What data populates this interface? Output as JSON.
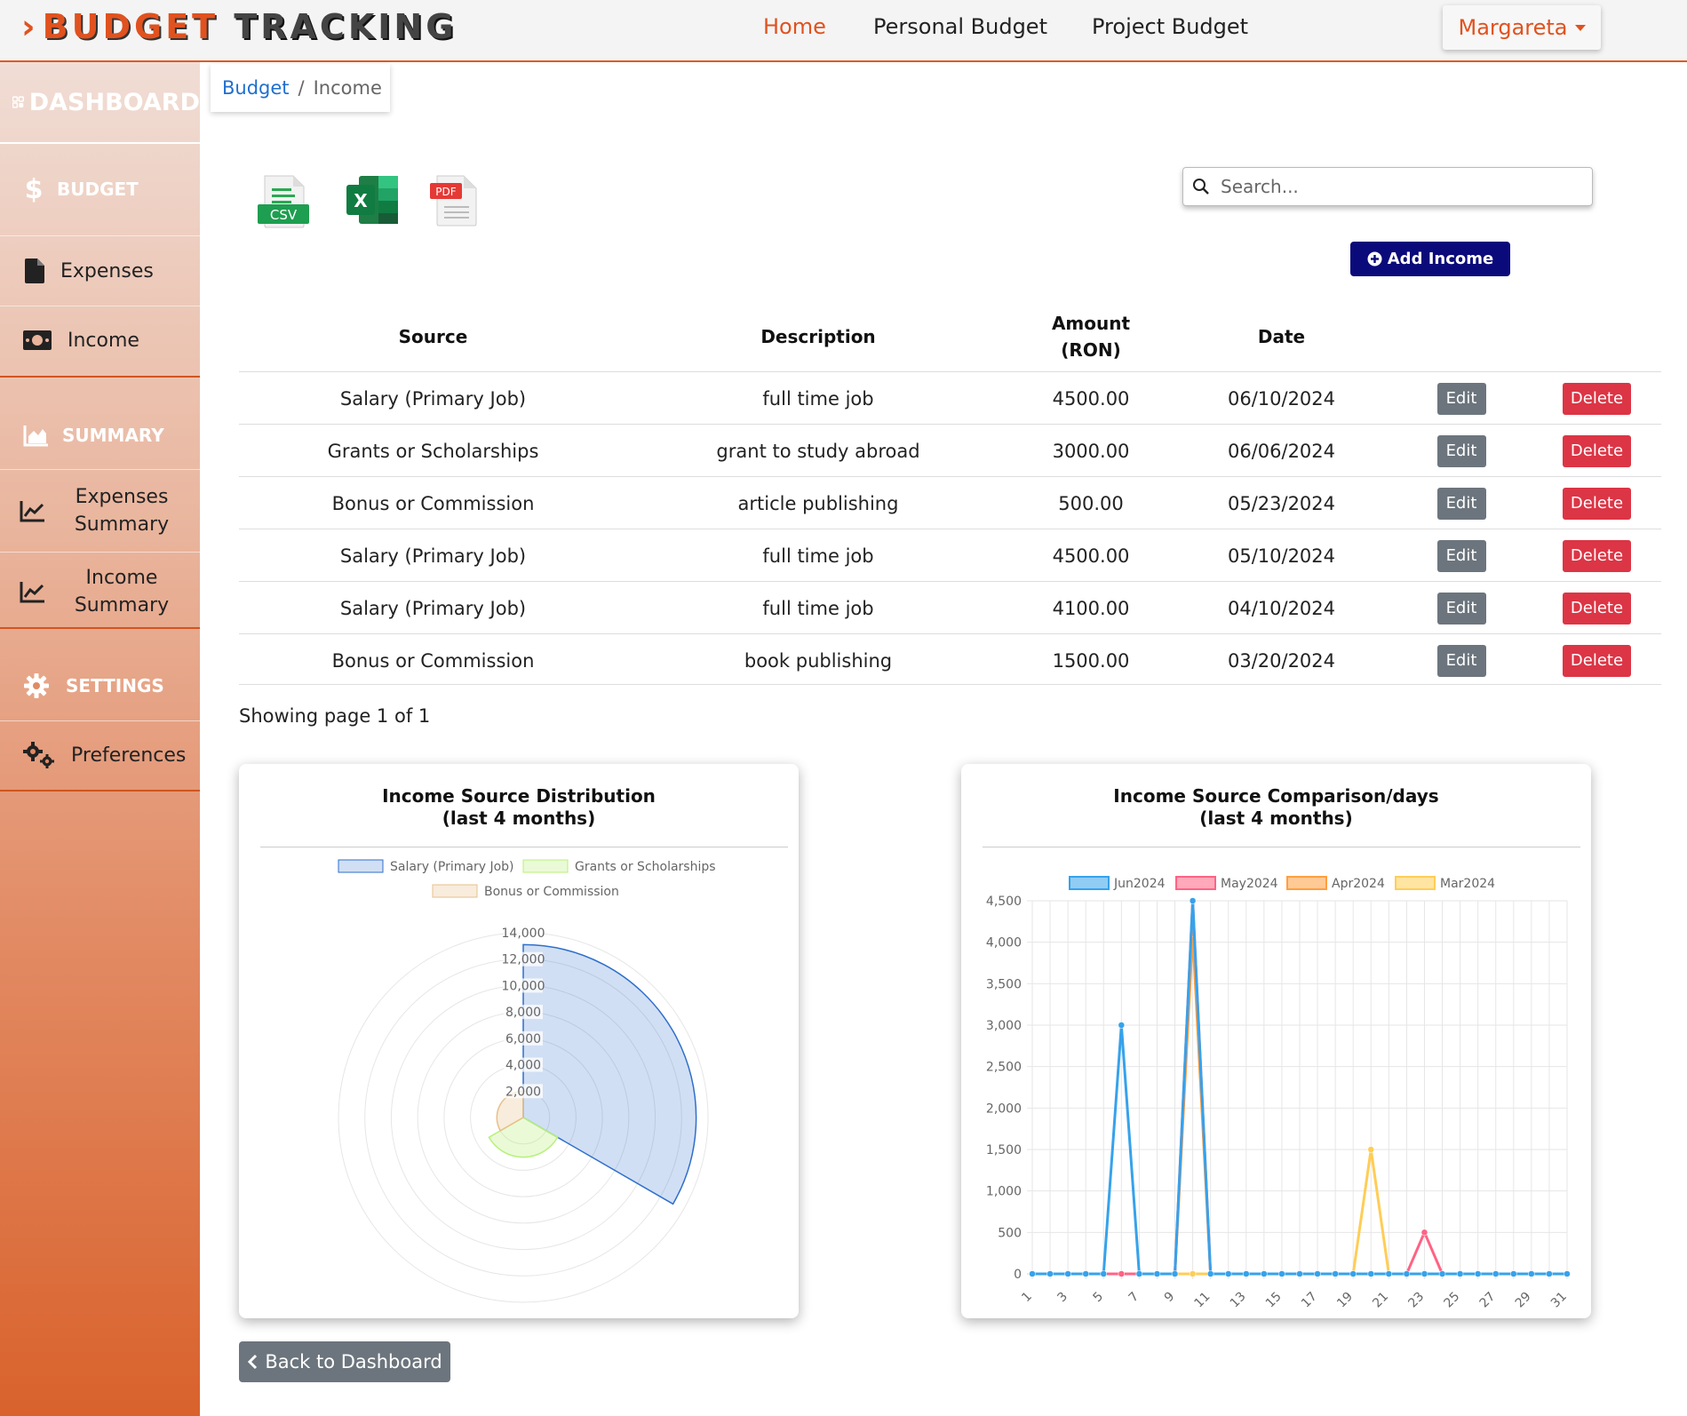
{
  "brand": {
    "prefix": "›",
    "word1": "BUDGET",
    "word2": "TRACKING"
  },
  "topnav": {
    "home": "Home",
    "personal": "Personal Budget",
    "project": "Project Budget",
    "user": "Margareta"
  },
  "sidebar": {
    "title": "DASHBOARD",
    "budget_section": "BUDGET",
    "expenses": "Expenses",
    "income": "Income",
    "summary_section": "SUMMARY",
    "expenses_summary_1": "Expenses",
    "expenses_summary_2": "Summary",
    "income_summary_1": "Income",
    "income_summary_2": "Summary",
    "settings_section": "SETTINGS",
    "preferences": "Preferences"
  },
  "breadcrumb": {
    "parent": "Budget",
    "sep": "/",
    "current": "Income"
  },
  "export": {
    "csv_label": "CSV",
    "excel_label": "X",
    "pdf_label": "PDF"
  },
  "search": {
    "placeholder": "Search..."
  },
  "add_button": "Add Income",
  "table": {
    "headers": {
      "source": "Source",
      "description": "Description",
      "amount_1": "Amount",
      "amount_2": "(RON)",
      "date": "Date"
    },
    "edit_label": "Edit",
    "delete_label": "Delete",
    "rows": [
      {
        "source": "Salary (Primary Job)",
        "description": "full time job",
        "amount": "4500.00",
        "date": "06/10/2024"
      },
      {
        "source": "Grants or Scholarships",
        "description": "grant to study abroad",
        "amount": "3000.00",
        "date": "06/06/2024"
      },
      {
        "source": "Bonus or Commission",
        "description": "article publishing",
        "amount": "500.00",
        "date": "05/23/2024"
      },
      {
        "source": "Salary (Primary Job)",
        "description": "full time job",
        "amount": "4500.00",
        "date": "05/10/2024"
      },
      {
        "source": "Salary (Primary Job)",
        "description": "full time job",
        "amount": "4100.00",
        "date": "04/10/2024"
      },
      {
        "source": "Bonus or Commission",
        "description": "book publishing",
        "amount": "1500.00",
        "date": "03/20/2024"
      }
    ]
  },
  "pagination": "Showing page 1 of 1",
  "back_button": "Back to Dashboard",
  "chart_data": [
    {
      "type": "polarArea",
      "title_line1": "Income Source Distribution",
      "title_line2": "(last 4 months)",
      "categories": [
        "Salary (Primary Job)",
        "Grants or Scholarships",
        "Bonus or Commission"
      ],
      "values": [
        13100,
        3000,
        2000
      ],
      "colors": [
        "#2f6fcb",
        "#b8f07a",
        "#e8c08a"
      ],
      "fills": [
        "rgba(47,111,203,0.22)",
        "rgba(184,240,122,0.3)",
        "rgba(232,192,138,0.3)"
      ],
      "rmax": 14000,
      "ticks": [
        "2,000",
        "4,000",
        "6,000",
        "8,000",
        "10,000",
        "12,000",
        "14,000"
      ],
      "legend": "top"
    },
    {
      "type": "line",
      "title_line1": "Income Source Comparison/days",
      "title_line2": "(last 4 months)",
      "x_ticks": [
        "1",
        "3",
        "5",
        "7",
        "9",
        "11",
        "13",
        "15",
        "17",
        "19",
        "21",
        "23",
        "25",
        "27",
        "29",
        "31"
      ],
      "y_ticks": [
        "0",
        "500",
        "1,000",
        "1,500",
        "2,000",
        "2,500",
        "3,000",
        "3,500",
        "4,000",
        "4,500"
      ],
      "ylim": [
        0,
        4500
      ],
      "days": 31,
      "legend": "top",
      "series": [
        {
          "name": "Apr2024",
          "color": "#ff9f40",
          "points": [
            {
              "day": 10,
              "value": 4100
            }
          ]
        },
        {
          "name": "Mar2024",
          "color": "#ffcd56",
          "points": [
            {
              "day": 20,
              "value": 1500
            }
          ]
        },
        {
          "name": "May2024",
          "color": "#ff6384",
          "points": [
            {
              "day": 10,
              "value": 4500
            },
            {
              "day": 23,
              "value": 500
            }
          ]
        },
        {
          "name": "Jun2024",
          "color": "#36a2eb",
          "points": [
            {
              "day": 6,
              "value": 3000
            },
            {
              "day": 10,
              "value": 4500
            }
          ]
        }
      ],
      "legend_order": [
        "Jun2024",
        "May2024",
        "Apr2024",
        "Mar2024"
      ]
    }
  ]
}
